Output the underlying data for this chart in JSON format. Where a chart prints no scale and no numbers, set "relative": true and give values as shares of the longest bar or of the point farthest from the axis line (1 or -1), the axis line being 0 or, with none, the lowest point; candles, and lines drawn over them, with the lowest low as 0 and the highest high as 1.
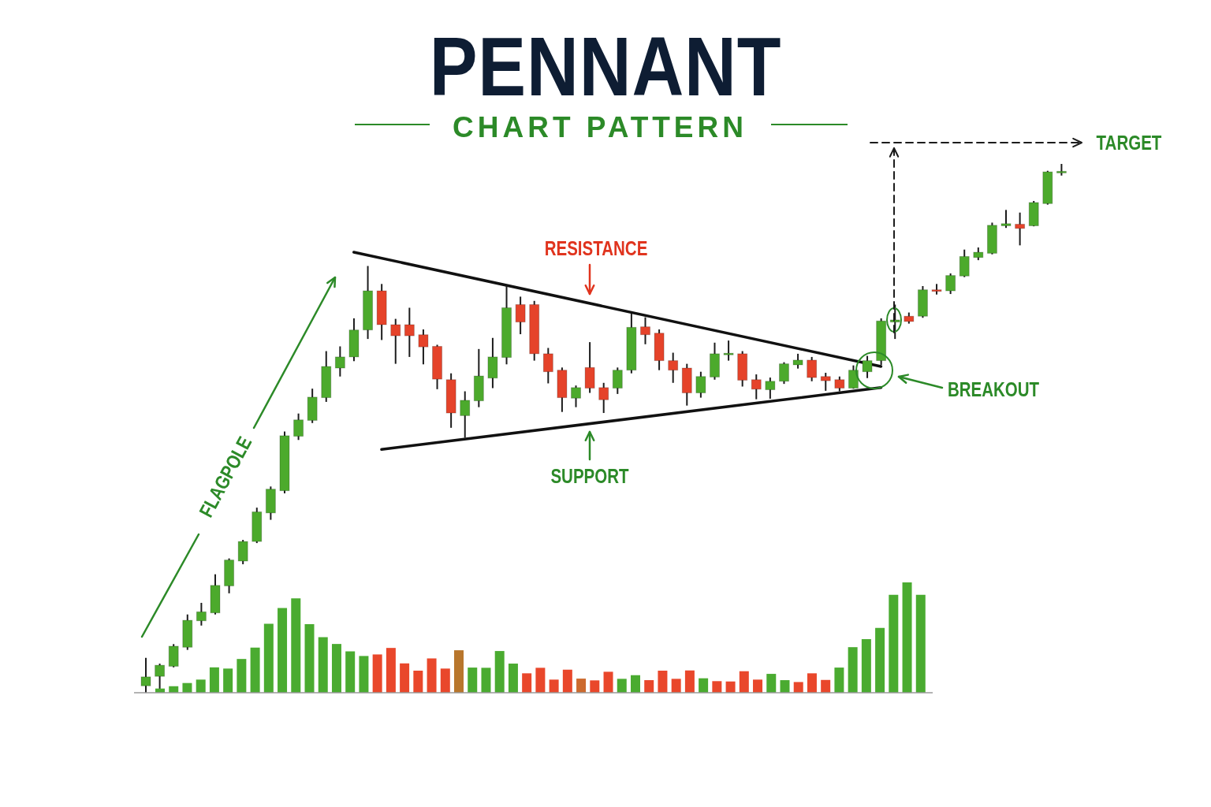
{
  "chart_data": [
    {
      "type": "candlestick",
      "title": "PENNANT",
      "subtitle": "CHART PATTERN",
      "relative": true,
      "categories": [
        null,
        null,
        null,
        null,
        null,
        null,
        null,
        null,
        null,
        null,
        null,
        null,
        null,
        null,
        null,
        null,
        null,
        null,
        null,
        null,
        null,
        null,
        null,
        null,
        null,
        null,
        null,
        null,
        null,
        null,
        null,
        null,
        null,
        null,
        null,
        null,
        null,
        null,
        null,
        null,
        null,
        null,
        null,
        null,
        null,
        null,
        null,
        null,
        null,
        null,
        null,
        null,
        null,
        null,
        null,
        null,
        null,
        null,
        null,
        null,
        null,
        null,
        null,
        null,
        null,
        null,
        null
      ],
      "ohlc": [
        [
          0.013,
          0.066,
          0,
          0.03
        ],
        [
          0.031,
          0.055,
          0.004,
          0.052
        ],
        [
          0.05,
          0.092,
          0.048,
          0.088
        ],
        [
          0.086,
          0.148,
          0.081,
          0.137
        ],
        [
          0.136,
          0.17,
          0.127,
          0.153
        ],
        [
          0.151,
          0.224,
          0.148,
          0.203
        ],
        [
          0.202,
          0.254,
          0.188,
          0.251
        ],
        [
          0.249,
          0.289,
          0.243,
          0.286
        ],
        [
          0.286,
          0.35,
          0.283,
          0.342
        ],
        [
          0.34,
          0.39,
          0.327,
          0.385
        ],
        [
          0.382,
          0.494,
          0.377,
          0.486
        ],
        [
          0.485,
          0.528,
          0.478,
          0.516
        ],
        [
          0.515,
          0.575,
          0.51,
          0.559
        ],
        [
          0.558,
          0.646,
          0.55,
          0.617
        ],
        [
          0.614,
          0.655,
          0.598,
          0.635
        ],
        [
          0.635,
          0.708,
          0.627,
          0.686
        ],
        [
          0.686,
          0.807,
          0.669,
          0.76
        ],
        [
          0.76,
          0.773,
          0.667,
          0.696
        ],
        [
          0.696,
          0.707,
          0.622,
          0.675
        ],
        [
          0.696,
          0.728,
          0.635,
          0.675
        ],
        [
          0.677,
          0.687,
          0.621,
          0.654
        ],
        [
          0.655,
          0.658,
          0.574,
          0.593
        ],
        [
          0.592,
          0.604,
          0.501,
          0.529
        ],
        [
          0.524,
          0.57,
          0.482,
          0.553
        ],
        [
          0.552,
          0.65,
          0.54,
          0.599
        ],
        [
          0.595,
          0.671,
          0.576,
          0.635
        ],
        [
          0.634,
          0.77,
          0.621,
          0.728
        ],
        [
          0.734,
          0.749,
          0.678,
          0.701
        ],
        [
          0.734,
          0.741,
          0.628,
          0.641
        ],
        [
          0.641,
          0.652,
          0.585,
          0.607
        ],
        [
          0.61,
          0.615,
          0.531,
          0.558
        ],
        [
          0.557,
          0.581,
          0.54,
          0.577
        ],
        [
          0.615,
          0.663,
          0.567,
          0.576
        ],
        [
          0.577,
          0.586,
          0.529,
          0.554
        ],
        [
          0.576,
          0.615,
          0.565,
          0.61
        ],
        [
          0.61,
          0.717,
          0.604,
          0.691
        ],
        [
          0.692,
          0.71,
          0.659,
          0.677
        ],
        [
          0.68,
          0.687,
          0.61,
          0.628
        ],
        [
          0.628,
          0.643,
          0.586,
          0.61
        ],
        [
          0.614,
          0.622,
          0.543,
          0.567
        ],
        [
          0.567,
          0.607,
          0.558,
          0.598
        ],
        [
          0.597,
          0.662,
          0.592,
          0.641
        ],
        [
          0.639,
          0.666,
          0.628,
          0.642
        ],
        [
          0.641,
          0.646,
          0.579,
          0.591
        ],
        [
          0.592,
          0.602,
          0.555,
          0.574
        ],
        [
          0.573,
          0.596,
          0.556,
          0.589
        ],
        [
          0.589,
          0.625,
          0.584,
          0.622
        ],
        [
          0.62,
          0.641,
          0.613,
          0.629
        ],
        [
          0.629,
          0.635,
          0.589,
          0.596
        ],
        [
          0.598,
          0.605,
          0.571,
          0.59
        ],
        [
          0.592,
          0.598,
          0.57,
          0.576
        ],
        [
          0.576,
          0.619,
          0.575,
          0.61
        ],
        [
          0.607,
          0.637,
          0.595,
          0.628
        ],
        [
          0.628,
          0.708,
          0.62,
          0.703
        ],
        [
          0.701,
          0.734,
          0.669,
          0.705
        ],
        [
          0.712,
          0.719,
          0.698,
          0.702
        ],
        [
          0.712,
          0.769,
          0.709,
          0.762
        ],
        [
          0.762,
          0.773,
          0.753,
          0.759
        ],
        [
          0.76,
          0.793,
          0.754,
          0.789
        ],
        [
          0.788,
          0.838,
          0.786,
          0.825
        ],
        [
          0.823,
          0.842,
          0.818,
          0.833
        ],
        [
          0.831,
          0.889,
          0.829,
          0.884
        ],
        [
          0.883,
          0.913,
          0.879,
          0.887
        ],
        [
          0.886,
          0.908,
          0.846,
          0.878
        ],
        [
          0.883,
          0.93,
          0.882,
          0.927
        ],
        [
          0.925,
          0.987,
          0.923,
          0.985
        ],
        [
          0.984,
          1.0,
          0.978,
          0.986
        ]
      ],
      "colors": [
        "#4caa2c",
        "#4caa2c",
        "#4caa2c",
        "#4caa2c",
        "#4caa2c",
        "#4caa2c",
        "#4caa2c",
        "#4caa2c",
        "#4caa2c",
        "#4caa2c",
        "#4caa2c",
        "#4caa2c",
        "#4caa2c",
        "#4caa2c",
        "#4caa2c",
        "#4caa2c",
        "#4caa2c",
        "#e5432a",
        "#e5432a",
        "#e5432a",
        "#e5432a",
        "#e5432a",
        "#e5432a",
        "#4caa2c",
        "#4caa2c",
        "#4caa2c",
        "#4caa2c",
        "#e5432a",
        "#e5432a",
        "#e5432a",
        "#e5432a",
        "#4caa2c",
        "#e5432a",
        "#e5432a",
        "#4caa2c",
        "#4caa2c",
        "#e5432a",
        "#e5432a",
        "#e5432a",
        "#e5432a",
        "#4caa2c",
        "#4caa2c",
        "#4caa2c",
        "#e5432a",
        "#e5432a",
        "#4caa2c",
        "#4caa2c",
        "#4caa2c",
        "#e5432a",
        "#e5432a",
        "#e5432a",
        "#4caa2c",
        "#4caa2c",
        "#4caa2c",
        "#4caa2c",
        "#e5432a",
        "#4caa2c",
        "#e5432a",
        "#4caa2c",
        "#4caa2c",
        "#4caa2c",
        "#4caa2c",
        "#4caa2c",
        "#e5432a",
        "#4caa2c",
        "#4caa2c",
        "#4caa2c"
      ],
      "series": [
        {
          "type": "line",
          "color": "#111111",
          "values": [
            null,
            null,
            null,
            null,
            null,
            null,
            null,
            null,
            null,
            null,
            null,
            null,
            null,
            null,
            null,
            0.833,
            null,
            null,
            null,
            null,
            null,
            null,
            null,
            null,
            null,
            null,
            null,
            null,
            null,
            null,
            null,
            null,
            null,
            null,
            null,
            null,
            null,
            null,
            null,
            null,
            null,
            null,
            null,
            null,
            null,
            null,
            null,
            null,
            null,
            null,
            null,
            null,
            null,
            0.617,
            null,
            null,
            null,
            null,
            null,
            null,
            null,
            null,
            null,
            null,
            null,
            null,
            null
          ]
        },
        {
          "type": "line",
          "color": "#111111",
          "values": [
            null,
            null,
            null,
            null,
            null,
            null,
            null,
            null,
            null,
            null,
            null,
            null,
            null,
            null,
            null,
            null,
            null,
            0.46,
            null,
            null,
            null,
            null,
            null,
            null,
            null,
            null,
            null,
            null,
            null,
            null,
            null,
            null,
            null,
            null,
            null,
            null,
            null,
            null,
            null,
            null,
            null,
            null,
            null,
            null,
            null,
            null,
            null,
            null,
            null,
            null,
            null,
            null,
            null,
            0.577,
            null,
            null,
            null,
            null,
            null,
            null,
            null,
            null,
            null,
            null,
            null,
            null,
            null
          ]
        }
      ],
      "annotations": [
        "FLAGPOLE",
        "RESISTANCE",
        "SUPPORT",
        "BREAKOUT",
        "TARGET"
      ]
    },
    {
      "type": "bar",
      "relative": true,
      "categories": [
        null,
        null,
        null,
        null,
        null,
        null,
        null,
        null,
        null,
        null,
        null,
        null,
        null,
        null,
        null,
        null,
        null,
        null,
        null,
        null,
        null,
        null,
        null,
        null,
        null,
        null,
        null,
        null,
        null,
        null,
        null,
        null,
        null,
        null,
        null,
        null,
        null,
        null,
        null,
        null,
        null,
        null,
        null,
        null,
        null,
        null,
        null,
        null,
        null,
        null,
        null,
        null,
        null,
        null,
        null,
        null,
        null
      ],
      "values": [
        0.038,
        0.059,
        0.088,
        0.119,
        0.23,
        0.219,
        0.306,
        0.409,
        0.625,
        0.767,
        0.855,
        0.622,
        0.504,
        0.442,
        0.375,
        0.333,
        0.347,
        0.406,
        0.266,
        0.2,
        0.311,
        0.219,
        0.385,
        0.228,
        0.226,
        0.378,
        0.264,
        0.176,
        0.226,
        0.119,
        0.209,
        0.128,
        0.112,
        0.19,
        0.126,
        0.159,
        0.114,
        0.2,
        0.126,
        0.202,
        0.131,
        0.105,
        0.102,
        0.195,
        0.119,
        0.171,
        0.114,
        0.097,
        0.176,
        0.116,
        0.228,
        0.413,
        0.485,
        0.587,
        0.888,
        1,
        0.888
      ],
      "colors": [
        "#4aab30",
        "#4aab30",
        "#4aab30",
        "#4aab30",
        "#4aab30",
        "#4aab30",
        "#4aab30",
        "#4aab30",
        "#4aab30",
        "#4aab30",
        "#4aab30",
        "#4aab30",
        "#4aab30",
        "#4aab30",
        "#4aab30",
        "#4aab30",
        "#e9472b",
        "#e9472b",
        "#e9472b",
        "#e9472b",
        "#e9472b",
        "#e9472b",
        "#b8762c",
        "#4aab30",
        "#4aab30",
        "#4aab30",
        "#4aab30",
        "#e9472b",
        "#e9472b",
        "#e9472b",
        "#e9472b",
        "#cc6a2e",
        "#e9472b",
        "#e9472b",
        "#4aab30",
        "#4aab30",
        "#e9472b",
        "#e9472b",
        "#e9472b",
        "#e9472b",
        "#4aab30",
        "#e9472b",
        "#e9472b",
        "#e9472b",
        "#e9472b",
        "#4aab30",
        "#4aab30",
        "#e9472b",
        "#e9472b",
        "#e9472b",
        "#4aab30",
        "#4aab30",
        "#4aab30",
        "#4aab30",
        "#4aab30",
        "#4aab30",
        "#4aab30"
      ]
    }
  ]
}
